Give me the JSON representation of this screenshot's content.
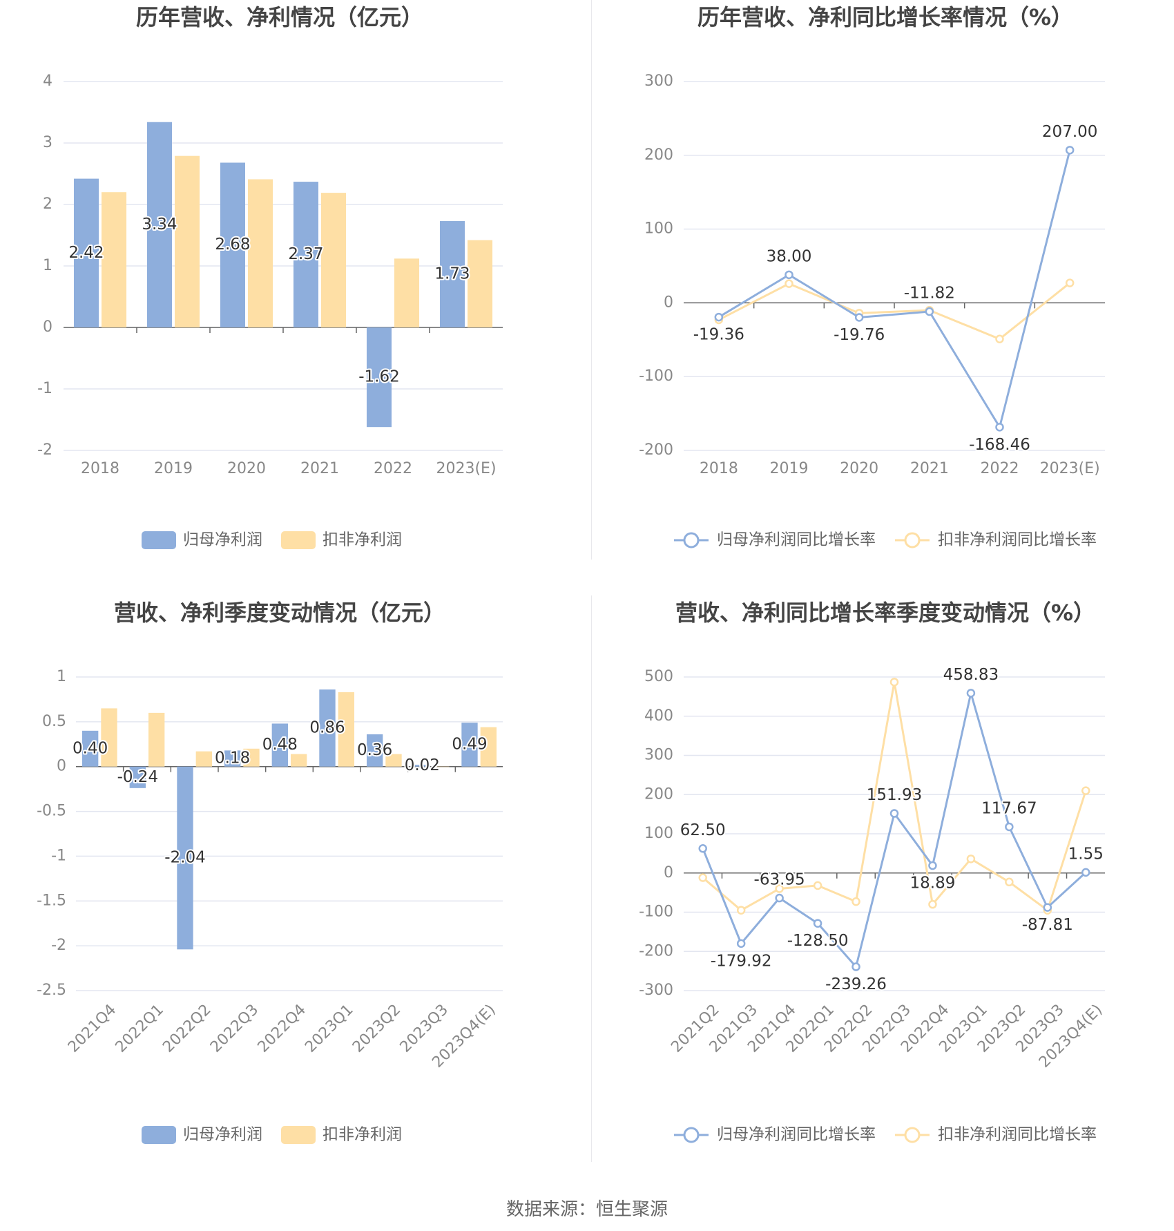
{
  "source": "数据来源：恒生聚源",
  "colors": {
    "blue": "#8eaedc",
    "orange": "#fedfa5",
    "grid": "#e3e6f0",
    "axis": "#666666"
  },
  "chart_data": [
    {
      "type": "bar",
      "title": "历年营收、净利情况（亿元）",
      "categories": [
        "2018",
        "2019",
        "2020",
        "2021",
        "2022",
        "2023(E)"
      ],
      "ylim": [
        -2,
        4
      ],
      "yticks": [
        "-2",
        "-1",
        "0",
        "1",
        "2",
        "3",
        "4"
      ],
      "series": [
        {
          "name": "归母净利润",
          "values": [
            2.42,
            3.34,
            2.68,
            2.37,
            -1.62,
            1.73
          ],
          "labels": [
            "2.42",
            "3.34",
            "2.68",
            "2.37",
            "-1.62",
            "1.73"
          ]
        },
        {
          "name": "扣非净利润",
          "values": [
            2.2,
            2.79,
            2.41,
            2.19,
            1.12,
            1.42
          ]
        }
      ],
      "legend": "bottom-center",
      "grid": true
    },
    {
      "type": "line",
      "title": "历年营收、净利同比增长率情况（%）",
      "categories": [
        "2018",
        "2019",
        "2020",
        "2021",
        "2022",
        "2023(E)"
      ],
      "ylim": [
        -200,
        300
      ],
      "yticks": [
        "-200",
        "-100",
        "0",
        "100",
        "200",
        "300"
      ],
      "series": [
        {
          "name": "归母净利润同比增长率",
          "values": [
            -19.36,
            38.0,
            -19.76,
            -11.82,
            -168.46,
            207.0
          ],
          "labels": [
            "-19.36",
            "38.00",
            "-19.76",
            "-11.82",
            "-168.46",
            "207.00"
          ]
        },
        {
          "name": "扣非净利润同比增长率",
          "values": [
            -23.0,
            26.0,
            -14.0,
            -10.0,
            -49.0,
            27.0
          ]
        }
      ],
      "legend": "bottom-center",
      "grid": true
    },
    {
      "type": "bar",
      "title": "营收、净利季度变动情况（亿元）",
      "categories": [
        "2021Q4",
        "2022Q1",
        "2022Q2",
        "2022Q3",
        "2022Q4",
        "2023Q1",
        "2023Q2",
        "2023Q3",
        "2023Q4(E)"
      ],
      "ylim": [
        -2.5,
        1
      ],
      "yticks": [
        "-2.5",
        "-2",
        "-1.5",
        "-1",
        "-0.5",
        "0",
        "0.5",
        "1"
      ],
      "series": [
        {
          "name": "归母净利润",
          "values": [
            0.4,
            -0.24,
            -2.04,
            0.18,
            0.48,
            0.86,
            0.36,
            0.02,
            0.49
          ],
          "labels": [
            "0.40",
            "-0.24",
            "-2.04",
            "0.18",
            "0.48",
            "0.86",
            "0.36",
            "0.02",
            "0.49"
          ]
        },
        {
          "name": "扣非净利润",
          "values": [
            0.65,
            0.6,
            0.17,
            0.2,
            0.14,
            0.83,
            0.14,
            0.0,
            0.44
          ]
        }
      ],
      "legend": "bottom-center",
      "grid": true
    },
    {
      "type": "line",
      "title": "营收、净利同比增长率季度变动情况（%）",
      "categories": [
        "2021Q2",
        "2021Q3",
        "2021Q4",
        "2022Q1",
        "2022Q2",
        "2022Q3",
        "2022Q4",
        "2023Q1",
        "2023Q2",
        "2023Q3",
        "2023Q4(E)"
      ],
      "ylim": [
        -300,
        500
      ],
      "yticks": [
        "-300",
        "-200",
        "-100",
        "0",
        "100",
        "200",
        "300",
        "400",
        "500"
      ],
      "series": [
        {
          "name": "归母净利润同比增长率",
          "values": [
            62.5,
            -179.92,
            -63.95,
            -128.5,
            -239.26,
            151.93,
            18.89,
            458.83,
            117.67,
            -87.81,
            1.55
          ],
          "labels": [
            "62.50",
            "-179.92",
            "-63.95",
            "-128.50",
            "-239.26",
            "151.93",
            "18.89",
            "458.83",
            "117.67",
            "-87.81",
            "1.55"
          ]
        },
        {
          "name": "扣非净利润同比增长率",
          "values": [
            -12.0,
            -95.0,
            -40.0,
            -32.0,
            -73.0,
            487.0,
            -80.0,
            36.0,
            -23.0,
            -95.0,
            210.0
          ]
        }
      ],
      "legend": "bottom-center",
      "grid": true
    }
  ]
}
